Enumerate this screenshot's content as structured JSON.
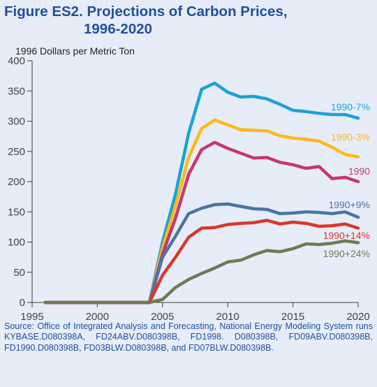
{
  "figure": {
    "title_line1": "Figure ES2.  Projections of Carbon Prices,",
    "title_line2": "1996-2020",
    "source": "Source: Office of Integrated Analysis and Forecasting, National Energy Modeling System runs KYBASE.D080398A, FD24ABV.D080398B, FD1998. D080398B, FD09ABV.D080398B, FD1990.D080398B, FD03BLW.D080398B, and FD07BLW.D080398B."
  },
  "chart_data": {
    "type": "line",
    "title": "Figure ES2.  Projections of Carbon Prices, 1996-2020",
    "ylabel": "1996 Dollars per Metric Ton",
    "xlabel": "",
    "xlim": [
      1995,
      2020
    ],
    "ylim": [
      0,
      400
    ],
    "x_ticks": [
      1995,
      2000,
      2005,
      2010,
      2015,
      2020
    ],
    "y_ticks": [
      0,
      50,
      100,
      150,
      200,
      250,
      300,
      350,
      400
    ],
    "grid": false,
    "legend": "inline labels at right end of each line",
    "x": [
      1996,
      1997,
      1998,
      1999,
      2000,
      2001,
      2002,
      2003,
      2004,
      2005,
      2006,
      2007,
      2008,
      2009,
      2010,
      2011,
      2012,
      2013,
      2014,
      2015,
      2016,
      2017,
      2018,
      2019,
      2020
    ],
    "series": [
      {
        "name": "1990-7%",
        "color": "#1aa3d6",
        "values": [
          0,
          0,
          0,
          0,
          0,
          0,
          0,
          0,
          0,
          100,
          180,
          280,
          353,
          363,
          348,
          340,
          341,
          337,
          328,
          318,
          316,
          313,
          311,
          311,
          305
        ]
      },
      {
        "name": "1990-3%",
        "color": "#ffb81c",
        "values": [
          0,
          0,
          0,
          0,
          0,
          0,
          0,
          0,
          0,
          90,
          160,
          240,
          288,
          302,
          294,
          286,
          285,
          284,
          276,
          272,
          270,
          267,
          257,
          245,
          241
        ]
      },
      {
        "name": "1990",
        "color": "#c8366e",
        "values": [
          0,
          0,
          0,
          0,
          0,
          0,
          0,
          0,
          0,
          80,
          140,
          212,
          253,
          265,
          255,
          247,
          239,
          240,
          232,
          228,
          222,
          225,
          205,
          207,
          200
        ]
      },
      {
        "name": "1990+9%",
        "color": "#4a74a3",
        "values": [
          0,
          0,
          0,
          0,
          0,
          0,
          0,
          0,
          0,
          75,
          110,
          147,
          156,
          162,
          163,
          159,
          155,
          154,
          147,
          148,
          150,
          149,
          147,
          150,
          141
        ]
      },
      {
        "name": "1990+14%",
        "color": "#d9372b",
        "values": [
          0,
          0,
          0,
          0,
          0,
          0,
          0,
          0,
          0,
          45,
          75,
          108,
          123,
          124,
          129,
          131,
          132,
          136,
          130,
          133,
          131,
          126,
          127,
          130,
          123
        ]
      },
      {
        "name": "1990+24%",
        "color": "#6e7a55",
        "values": [
          0,
          0,
          0,
          0,
          0,
          0,
          0,
          0,
          0,
          5,
          25,
          38,
          48,
          57,
          67,
          70,
          79,
          86,
          84,
          89,
          97,
          96,
          98,
          102,
          99
        ]
      }
    ]
  }
}
